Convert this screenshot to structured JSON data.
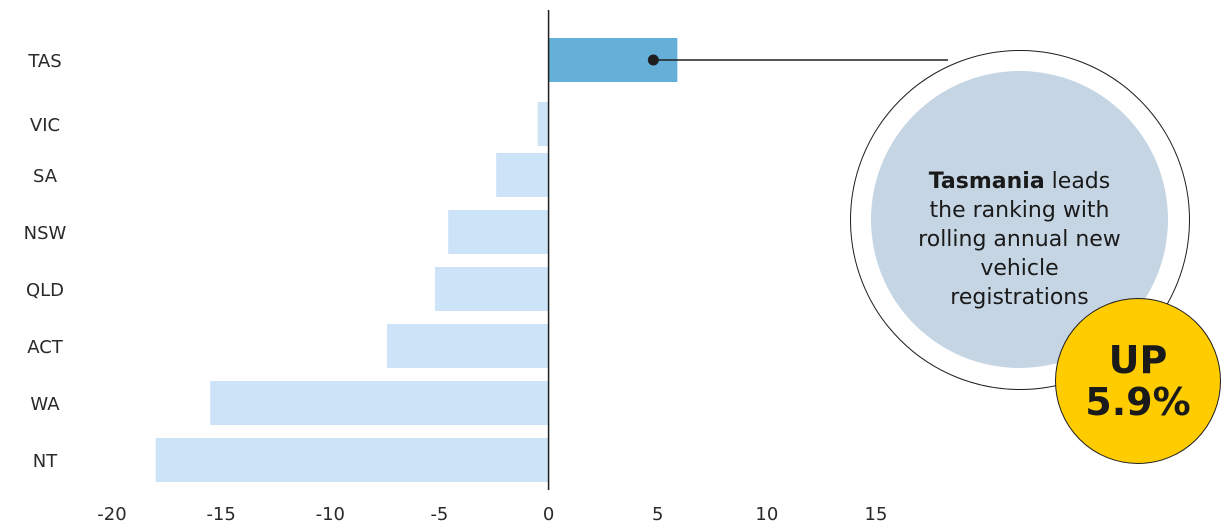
{
  "chart_data": {
    "type": "bar",
    "orientation": "horizontal",
    "categories": [
      "TAS",
      "VIC",
      "SA",
      "NSW",
      "QLD",
      "ACT",
      "WA",
      "NT"
    ],
    "values": [
      5.9,
      -0.5,
      -2.4,
      -4.6,
      -5.2,
      -7.4,
      -15.5,
      -18.0
    ],
    "xlim": [
      -20,
      15
    ],
    "xticks": [
      "-20",
      "-15",
      "-10",
      "-5",
      "0",
      "5",
      "10",
      "15"
    ],
    "highlight_category": "TAS",
    "colors": {
      "highlight": "#65b0d8",
      "default": "#cde3f7",
      "zero_line": "#1f1f1f"
    }
  },
  "callout": {
    "bold_text": "Tasmania",
    "text": " leads the ranking with rolling annual new vehicle registrations",
    "badge_line1": "UP",
    "badge_line2": "5.9%",
    "badge_color": "#ffcc00",
    "circle_color": "#c5d5e4"
  }
}
